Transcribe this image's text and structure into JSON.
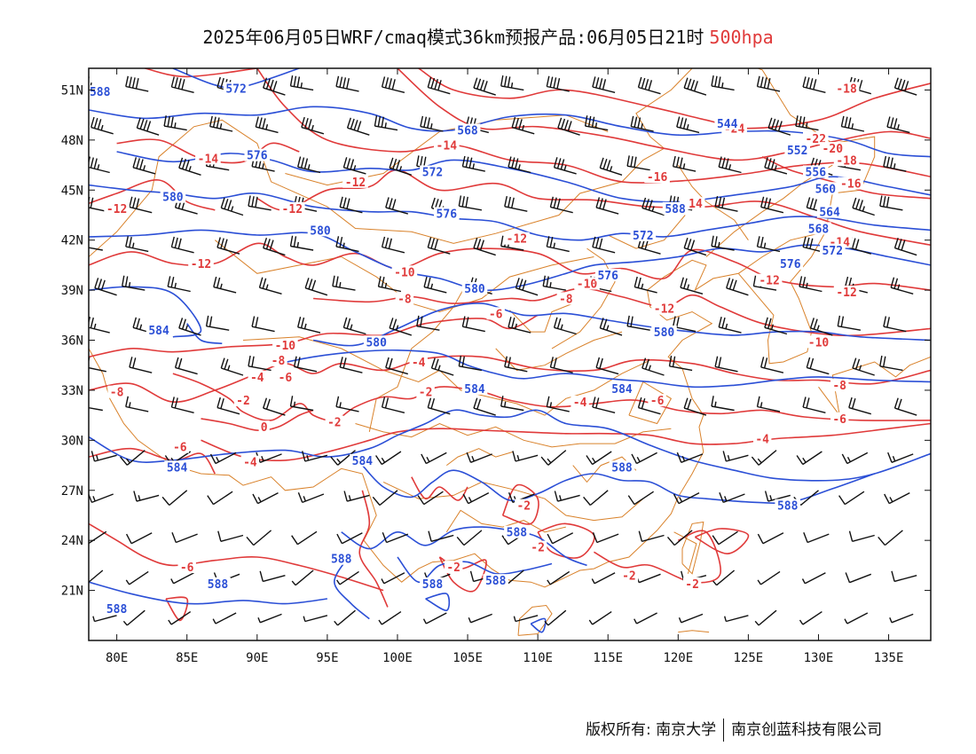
{
  "title": {
    "main": "2025年06月05日WRF/cmaq模式36km预报产品:06月05日21时",
    "level": "500hpa"
  },
  "colors": {
    "height": "#2b4fd6",
    "temperature": "#e03a3a",
    "border": "#d9822b",
    "wind": "#111111"
  },
  "lon_ticks": [
    "80E",
    "85E",
    "90E",
    "95E",
    "100E",
    "105E",
    "110E",
    "115E",
    "120E",
    "125E",
    "130E",
    "135E"
  ],
  "lat_ticks": [
    "51N",
    "48N",
    "45N",
    "42N",
    "39N",
    "36N",
    "33N",
    "30N",
    "27N",
    "24N",
    "21N"
  ],
  "height_labels": [
    {
      "text": "588",
      "lon": 78.8,
      "lat": 50.8
    },
    {
      "text": "572",
      "lon": 88.5,
      "lat": 51.0
    },
    {
      "text": "568",
      "lon": 105.0,
      "lat": 48.5
    },
    {
      "text": "576",
      "lon": 90.0,
      "lat": 47.0
    },
    {
      "text": "572",
      "lon": 102.5,
      "lat": 46.0
    },
    {
      "text": "580",
      "lon": 84.0,
      "lat": 44.5
    },
    {
      "text": "576",
      "lon": 103.5,
      "lat": 43.5
    },
    {
      "text": "580",
      "lon": 94.5,
      "lat": 42.5
    },
    {
      "text": "572",
      "lon": 117.5,
      "lat": 42.2
    },
    {
      "text": "576",
      "lon": 115.0,
      "lat": 39.8
    },
    {
      "text": "580",
      "lon": 105.5,
      "lat": 39.0
    },
    {
      "text": "584",
      "lon": 83.0,
      "lat": 36.5
    },
    {
      "text": "580",
      "lon": 98.5,
      "lat": 35.8
    },
    {
      "text": "580",
      "lon": 119.0,
      "lat": 36.4
    },
    {
      "text": "584",
      "lon": 105.5,
      "lat": 33.0
    },
    {
      "text": "584",
      "lon": 116.0,
      "lat": 33.0
    },
    {
      "text": "584",
      "lon": 84.3,
      "lat": 28.3
    },
    {
      "text": "584",
      "lon": 97.5,
      "lat": 28.7
    },
    {
      "text": "588",
      "lon": 116.0,
      "lat": 28.3
    },
    {
      "text": "588",
      "lon": 127.8,
      "lat": 26.0
    },
    {
      "text": "588",
      "lon": 108.5,
      "lat": 24.4
    },
    {
      "text": "588",
      "lon": 96.0,
      "lat": 22.8
    },
    {
      "text": "588",
      "lon": 87.2,
      "lat": 21.3
    },
    {
      "text": "588",
      "lon": 102.5,
      "lat": 21.3
    },
    {
      "text": "588",
      "lon": 107.0,
      "lat": 21.5
    },
    {
      "text": "588",
      "lon": 80.0,
      "lat": 19.8
    },
    {
      "text": "544",
      "lon": 123.5,
      "lat": 48.9
    },
    {
      "text": "552",
      "lon": 128.5,
      "lat": 47.3
    },
    {
      "text": "556",
      "lon": 129.8,
      "lat": 46.0
    },
    {
      "text": "560",
      "lon": 130.5,
      "lat": 45.0
    },
    {
      "text": "564",
      "lon": 130.8,
      "lat": 43.6
    },
    {
      "text": "568",
      "lon": 130.0,
      "lat": 42.6
    },
    {
      "text": "572",
      "lon": 131.0,
      "lat": 41.3
    },
    {
      "text": "576",
      "lon": 128.0,
      "lat": 40.5
    },
    {
      "text": "588",
      "lon": 119.8,
      "lat": 43.8
    }
  ],
  "temperature_labels": [
    {
      "text": "-18",
      "lon": 132.0,
      "lat": 51.0
    },
    {
      "text": "-24",
      "lon": 124.0,
      "lat": 48.6
    },
    {
      "text": "-22",
      "lon": 129.8,
      "lat": 48.0
    },
    {
      "text": "-20",
      "lon": 131.0,
      "lat": 47.4
    },
    {
      "text": "-18",
      "lon": 132.0,
      "lat": 46.7
    },
    {
      "text": "-16",
      "lon": 132.3,
      "lat": 45.3
    },
    {
      "text": "-16",
      "lon": 118.5,
      "lat": 45.7
    },
    {
      "text": "-14",
      "lon": 121.0,
      "lat": 44.1
    },
    {
      "text": "-14",
      "lon": 103.5,
      "lat": 47.6
    },
    {
      "text": "-14",
      "lon": 86.5,
      "lat": 46.8
    },
    {
      "text": "-12",
      "lon": 80.0,
      "lat": 43.8
    },
    {
      "text": "-12",
      "lon": 92.5,
      "lat": 43.8
    },
    {
      "text": "-12",
      "lon": 97.0,
      "lat": 45.4
    },
    {
      "text": "-12",
      "lon": 86.0,
      "lat": 40.5
    },
    {
      "text": "-12",
      "lon": 108.5,
      "lat": 42.0
    },
    {
      "text": "-14",
      "lon": 131.5,
      "lat": 41.8
    },
    {
      "text": "-12",
      "lon": 126.5,
      "lat": 39.5
    },
    {
      "text": "-12",
      "lon": 132.0,
      "lat": 38.8
    },
    {
      "text": "-10",
      "lon": 100.5,
      "lat": 40.0
    },
    {
      "text": "-10",
      "lon": 113.5,
      "lat": 39.3
    },
    {
      "text": "-12",
      "lon": 119.0,
      "lat": 37.8
    },
    {
      "text": "-10",
      "lon": 130.0,
      "lat": 35.8
    },
    {
      "text": "-8",
      "lon": 100.5,
      "lat": 38.4
    },
    {
      "text": "-8",
      "lon": 112.0,
      "lat": 38.4
    },
    {
      "text": "-6",
      "lon": 107.0,
      "lat": 37.5
    },
    {
      "text": "-10",
      "lon": 92.0,
      "lat": 35.6
    },
    {
      "text": "-8",
      "lon": 91.5,
      "lat": 34.7
    },
    {
      "text": "-6",
      "lon": 92.0,
      "lat": 33.7
    },
    {
      "text": "-4",
      "lon": 90.0,
      "lat": 33.7
    },
    {
      "text": "-4",
      "lon": 101.5,
      "lat": 34.6
    },
    {
      "text": "-2",
      "lon": 89.0,
      "lat": 32.3
    },
    {
      "text": "-2",
      "lon": 102.0,
      "lat": 32.8
    },
    {
      "text": "-8",
      "lon": 80.0,
      "lat": 32.8
    },
    {
      "text": "-2",
      "lon": 95.5,
      "lat": 31.0
    },
    {
      "text": "0",
      "lon": 90.5,
      "lat": 30.7
    },
    {
      "text": "-4",
      "lon": 113.0,
      "lat": 32.2
    },
    {
      "text": "-6",
      "lon": 118.5,
      "lat": 32.3
    },
    {
      "text": "-8",
      "lon": 131.5,
      "lat": 33.2
    },
    {
      "text": "-6",
      "lon": 131.5,
      "lat": 31.2
    },
    {
      "text": "-4",
      "lon": 126.0,
      "lat": 30.0
    },
    {
      "text": "-6",
      "lon": 84.5,
      "lat": 29.5
    },
    {
      "text": "-4",
      "lon": 89.5,
      "lat": 28.6
    },
    {
      "text": "-2",
      "lon": 109.0,
      "lat": 26.0
    },
    {
      "text": "-2",
      "lon": 110.0,
      "lat": 23.5
    },
    {
      "text": "-2",
      "lon": 104.0,
      "lat": 22.3
    },
    {
      "text": "-2",
      "lon": 116.5,
      "lat": 21.8
    },
    {
      "text": "-2",
      "lon": 121.0,
      "lat": 21.3
    },
    {
      "text": "-6",
      "lon": 85.0,
      "lat": 22.3
    }
  ],
  "footer": {
    "left": "版权所有: 南京大学",
    "right": "南京创蓝科技有限公司"
  }
}
